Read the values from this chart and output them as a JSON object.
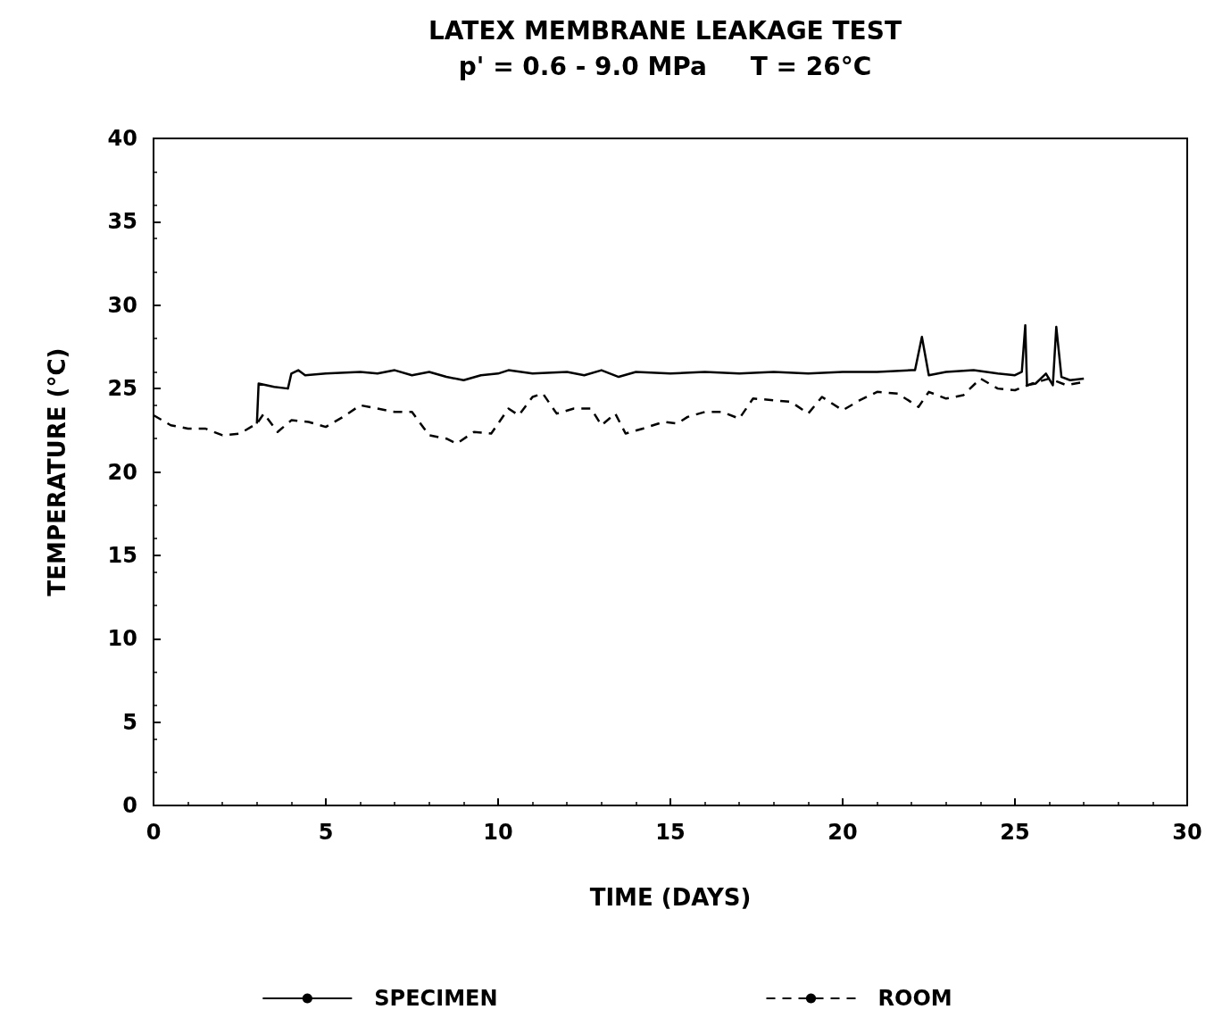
{
  "chart_data": {
    "type": "line",
    "title": "LATEX MEMBRANE LEAKAGE TEST",
    "subtitle": "p' = 0.6 - 9.0 MPa     T = 26°C",
    "xlabel": "TIME (DAYS)",
    "ylabel": "TEMPERATURE (°C)",
    "xlim": [
      0,
      30
    ],
    "xticks": [
      0,
      5,
      10,
      15,
      20,
      25,
      30
    ],
    "ylim": [
      0,
      40
    ],
    "yticks": [
      0,
      5,
      10,
      15,
      20,
      25,
      30,
      35,
      40
    ],
    "grid": false,
    "legend": "bottom",
    "marker": "none",
    "series": [
      {
        "name": "SPECIMEN",
        "color": "#000000",
        "line_style": "solid",
        "x": [
          3.0,
          3.05,
          3.5,
          3.9,
          4.0,
          4.2,
          4.4,
          5,
          6,
          6.5,
          7,
          7.5,
          8,
          8.5,
          9,
          9.5,
          10,
          10.3,
          11,
          12,
          12.5,
          13,
          13.5,
          14,
          15,
          16,
          17,
          18,
          19,
          20,
          21,
          22,
          22.1,
          22.3,
          22.5,
          23,
          23.8,
          24.5,
          25,
          25.2,
          25.3,
          25.35,
          25.6,
          25.9,
          26.1,
          26.2,
          26.35,
          26.6,
          27.0
        ],
        "values": [
          22.9,
          25.3,
          25.1,
          25.0,
          25.9,
          26.1,
          25.8,
          25.9,
          26.0,
          25.9,
          26.1,
          25.8,
          26.0,
          25.7,
          25.5,
          25.8,
          25.9,
          26.1,
          25.9,
          26.0,
          25.8,
          26.1,
          25.7,
          26.0,
          25.9,
          26.0,
          25.9,
          26.0,
          25.9,
          26.0,
          26.0,
          26.1,
          26.1,
          28.1,
          25.8,
          26.0,
          26.1,
          25.9,
          25.8,
          26.0,
          28.8,
          25.2,
          25.3,
          25.9,
          25.2,
          28.7,
          25.7,
          25.5,
          25.6
        ]
      },
      {
        "name": "ROOM",
        "color": "#000000",
        "line_style": "dashed",
        "x": [
          0,
          0.5,
          1,
          1.5,
          2,
          2.5,
          3,
          3.2,
          3.6,
          4,
          4.5,
          5,
          5.5,
          6,
          6.5,
          7,
          7.5,
          8,
          8.5,
          8.8,
          9.3,
          9.8,
          10.3,
          10.6,
          11,
          11.3,
          11.7,
          12.2,
          12.7,
          13,
          13.4,
          13.7,
          14.2,
          14.8,
          15.2,
          15.5,
          16,
          16.5,
          17,
          17.4,
          18,
          18.5,
          19,
          19.4,
          20,
          20.5,
          21,
          21.6,
          22.2,
          22.5,
          23,
          23.5,
          24,
          24.5,
          25,
          25.5,
          26,
          26.5,
          27
        ],
        "values": [
          23.4,
          22.8,
          22.6,
          22.6,
          22.2,
          22.3,
          22.9,
          23.5,
          22.4,
          23.1,
          23.0,
          22.7,
          23.3,
          24.0,
          23.8,
          23.6,
          23.6,
          22.2,
          22.0,
          21.7,
          22.4,
          22.3,
          23.8,
          23.4,
          24.5,
          24.7,
          23.5,
          23.8,
          23.8,
          22.8,
          23.5,
          22.3,
          22.6,
          23.0,
          22.9,
          23.3,
          23.6,
          23.6,
          23.2,
          24.4,
          24.3,
          24.2,
          23.5,
          24.5,
          23.7,
          24.3,
          24.8,
          24.7,
          23.9,
          24.8,
          24.4,
          24.6,
          25.6,
          25.0,
          24.9,
          25.3,
          25.6,
          25.2,
          25.4
        ]
      }
    ]
  }
}
